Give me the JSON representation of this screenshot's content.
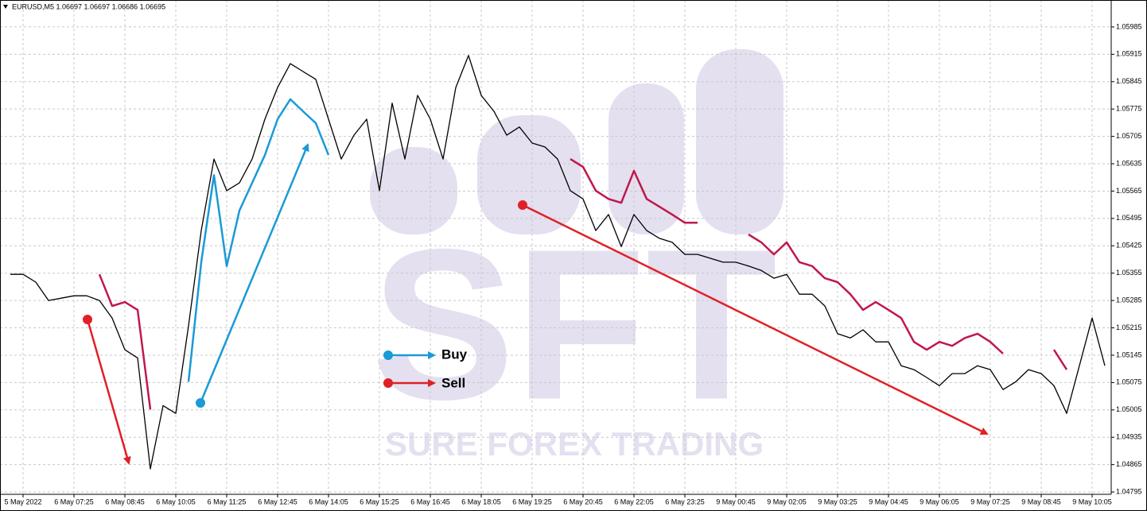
{
  "chart_data": {
    "type": "line",
    "title": "EURUSD,M5  1.06697 1.06697 1.06686 1.06695",
    "watermark": [
      "SFT",
      "SURE FOREX TRADING"
    ],
    "annotations": [
      "Buy",
      "Sell"
    ],
    "categories": [
      null,
      "5 May 2022",
      null,
      null,
      null,
      "6 May 07:25",
      null,
      null,
      null,
      "6 May 08:45",
      null,
      null,
      null,
      "6 May 10:05",
      null,
      null,
      null,
      "6 May 11:25",
      null,
      null,
      null,
      "6 May 12:45",
      null,
      null,
      null,
      "6 May 14:05",
      null,
      null,
      null,
      "6 May 15:25",
      null,
      null,
      null,
      "6 May 16:45",
      null,
      null,
      null,
      "6 May 18:05",
      null,
      null,
      null,
      "6 May 19:25",
      null,
      null,
      null,
      "6 May 20:45",
      null,
      null,
      null,
      "6 May 22:05",
      null,
      null,
      null,
      "6 May 23:25",
      null,
      null,
      null,
      "9 May 00:45",
      null,
      null,
      null,
      "9 May 02:05",
      null,
      null,
      null,
      "9 May 03:25",
      null,
      null,
      null,
      "9 May 04:45",
      null,
      null,
      null,
      "9 May 06:05",
      null,
      null,
      null,
      "9 May 07:25",
      null,
      null,
      null,
      "9 May 08:45",
      null,
      null,
      null,
      "9 May 10:05",
      null
    ],
    "series": [
      {
        "color": "#000000",
        "values": [
          1.05352,
          1.05352,
          1.05332,
          1.05285,
          1.05291,
          1.05297,
          1.05297,
          1.05285,
          1.0524,
          1.05159,
          1.05138,
          1.04854,
          1.05016,
          1.04996,
          1.0522,
          1.05464,
          1.05647,
          1.05566,
          1.05586,
          1.05647,
          1.05749,
          1.0583,
          1.05891,
          1.05871,
          1.05851,
          1.05749,
          1.05647,
          1.05708,
          1.05749,
          1.05566,
          1.0579,
          1.05647,
          1.0581,
          1.05749,
          1.05647,
          1.0583,
          1.05912,
          1.0581,
          1.05769,
          1.05708,
          1.05729,
          1.05688,
          1.05678,
          1.05647,
          1.05566,
          1.05545,
          1.05464,
          1.05505,
          1.05423,
          1.05505,
          1.05464,
          1.05444,
          1.05434,
          1.05403,
          1.05403,
          1.05393,
          1.05383,
          1.05383,
          1.05373,
          1.05362,
          1.05342,
          1.05352,
          1.05301,
          1.05301,
          1.05271,
          1.052,
          1.05189,
          1.0521,
          1.05179,
          1.05179,
          1.05118,
          1.05108,
          1.05088,
          1.05067,
          1.05098,
          1.05098,
          1.05118,
          1.05108,
          1.05057,
          1.05077,
          1.05108,
          1.05098,
          1.05067,
          1.04996,
          1.05118,
          1.0524,
          1.05118
        ]
      },
      {
        "color": "#1a9ad6",
        "values": [
          null,
          null,
          null,
          null,
          null,
          null,
          null,
          null,
          null,
          null,
          null,
          null,
          null,
          null,
          1.05077,
          1.05383,
          1.05606,
          1.05373,
          1.05515,
          1.05586,
          1.05657,
          1.05749,
          1.058,
          1.05769,
          1.05739,
          1.05657,
          null,
          null,
          null,
          null,
          null,
          null,
          null,
          null,
          null,
          null,
          null,
          null,
          null,
          null,
          null,
          null,
          null,
          null,
          null,
          null,
          null,
          null,
          null,
          null,
          null,
          null,
          null,
          null,
          null,
          null,
          null,
          null,
          null,
          null,
          null,
          null,
          null,
          null,
          null,
          null,
          null,
          null,
          null,
          null,
          null,
          null,
          null,
          null,
          null,
          null,
          null,
          null,
          null,
          null,
          null,
          null,
          null,
          null,
          null,
          null,
          null
        ]
      },
      {
        "color": "#c0184a",
        "values": [
          null,
          null,
          null,
          null,
          null,
          null,
          null,
          1.05352,
          1.05271,
          1.05281,
          1.05261,
          1.05006,
          null,
          null,
          null,
          null,
          null,
          null,
          null,
          null,
          null,
          null,
          null,
          null,
          null,
          null,
          null,
          null,
          null,
          null,
          null,
          null,
          null,
          null,
          null,
          null,
          null,
          null,
          null,
          null,
          null,
          null,
          null,
          null,
          1.05647,
          1.05627,
          1.05566,
          1.05545,
          1.05535,
          1.05617,
          1.05545,
          1.05525,
          1.05505,
          1.05484,
          1.05484,
          null,
          null,
          null,
          1.05454,
          1.05434,
          1.05403,
          1.05434,
          1.05383,
          1.05373,
          1.05342,
          1.05332,
          1.05301,
          1.05261,
          1.05281,
          1.05261,
          1.0524,
          1.05179,
          1.05159,
          1.05179,
          1.05169,
          1.05189,
          1.052,
          1.05179,
          1.05149,
          null,
          null,
          null,
          1.05159,
          1.05108,
          null,
          null,
          null
        ]
      }
    ],
    "ylim": [
      1.04789,
      1.06054
    ],
    "yticks": [
      1.05985,
      1.05915,
      1.05845,
      1.05775,
      1.05705,
      1.05635,
      1.05565,
      1.05495,
      1.05425,
      1.05355,
      1.05285,
      1.05215,
      1.05145,
      1.05075,
      1.05005,
      1.04935,
      1.04865,
      1.04795
    ],
    "grid": true
  }
}
